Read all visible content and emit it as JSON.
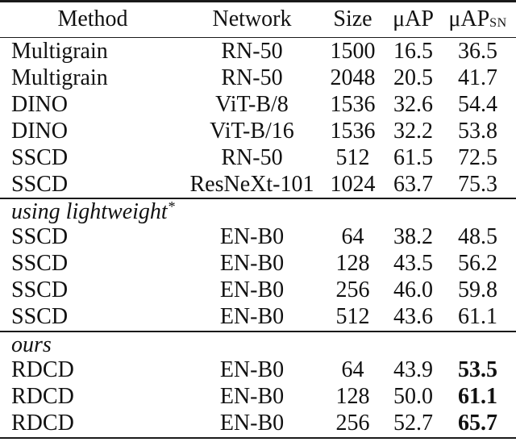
{
  "table": {
    "title_semantic": "copy-detection-benchmark-results",
    "colors": {
      "text": "#111111",
      "rule": "#1a1a1a",
      "background": "#ffffff"
    },
    "header": {
      "method": "Method",
      "network": "Network",
      "size": "Size",
      "uap": "μAP",
      "uap_sn_base": "μAP",
      "uap_sn_sub": "SN"
    },
    "sections": [
      {
        "label": "",
        "label_sup": "",
        "rows": [
          {
            "method": "Multigrain",
            "network": "RN-50",
            "size": "1500",
            "uap": "16.5",
            "uap_sn": "36.5"
          },
          {
            "method": "Multigrain",
            "network": "RN-50",
            "size": "2048",
            "uap": "20.5",
            "uap_sn": "41.7"
          },
          {
            "method": "DINO",
            "network": "ViT-B/8",
            "size": "1536",
            "uap": "32.6",
            "uap_sn": "54.4"
          },
          {
            "method": "DINO",
            "network": "ViT-B/16",
            "size": "1536",
            "uap": "32.2",
            "uap_sn": "53.8"
          },
          {
            "method": "SSCD",
            "network": "RN-50",
            "size": "512",
            "uap": "61.5",
            "uap_sn": "72.5"
          },
          {
            "method": "SSCD",
            "network": "ResNeXt-101",
            "size": "1024",
            "uap": "63.7",
            "uap_sn": "75.3"
          }
        ]
      },
      {
        "label": "using lightweight",
        "label_sup": "*",
        "rows": [
          {
            "method": "SSCD",
            "network": "EN-B0",
            "size": "64",
            "uap": "38.2",
            "uap_sn": "48.5"
          },
          {
            "method": "SSCD",
            "network": "EN-B0",
            "size": "128",
            "uap": "43.5",
            "uap_sn": "56.2"
          },
          {
            "method": "SSCD",
            "network": "EN-B0",
            "size": "256",
            "uap": "46.0",
            "uap_sn": "59.8"
          },
          {
            "method": "SSCD",
            "network": "EN-B0",
            "size": "512",
            "uap": "43.6",
            "uap_sn": "61.1"
          }
        ]
      },
      {
        "label": "ours",
        "label_sup": "",
        "rows": [
          {
            "method": "RDCD",
            "network": "EN-B0",
            "size": "64",
            "uap": "43.9",
            "uap_sn": "53.5"
          },
          {
            "method": "RDCD",
            "network": "EN-B0",
            "size": "128",
            "uap": "50.0",
            "uap_sn": "61.1"
          },
          {
            "method": "RDCD",
            "network": "EN-B0",
            "size": "256",
            "uap": "52.7",
            "uap_sn": "65.7"
          }
        ]
      }
    ]
  }
}
